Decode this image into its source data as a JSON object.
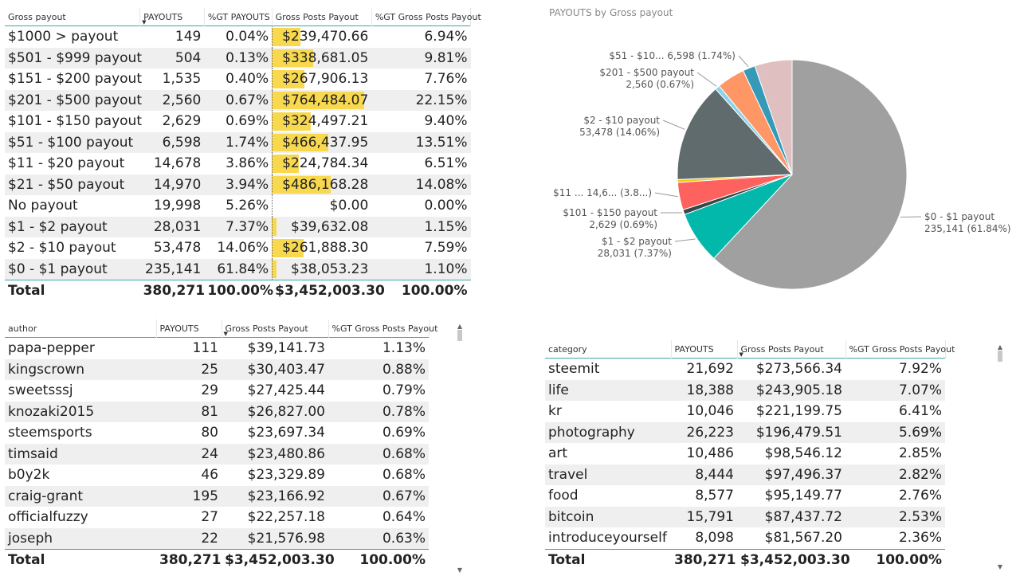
{
  "payout_table": {
    "headers": [
      "Gross payout",
      "PAYOUTS",
      "%GT PAYOUTS",
      "Gross Posts Payout",
      "%GT Gross Posts Payout"
    ],
    "rows": [
      {
        "label": "$1000 > payout",
        "payouts": "149",
        "pct_payouts": "0.04%",
        "gross": "$239,470.66",
        "pct_gross": "6.94%",
        "share": 0.3132
      },
      {
        "label": "$501  - $999 payout",
        "payouts": "504",
        "pct_payouts": "0.13%",
        "gross": "$338,681.05",
        "pct_gross": "9.81%",
        "share": 0.443
      },
      {
        "label": "$151  - $200 payout",
        "payouts": "1,535",
        "pct_payouts": "0.40%",
        "gross": "$267,906.13",
        "pct_gross": "7.76%",
        "share": 0.3504
      },
      {
        "label": "$201  - $500 payout",
        "payouts": "2,560",
        "pct_payouts": "0.67%",
        "gross": "$764,484.07",
        "pct_gross": "22.15%",
        "share": 1.0
      },
      {
        "label": "$101 - $150 payout",
        "payouts": "2,629",
        "pct_payouts": "0.69%",
        "gross": "$324,497.21",
        "pct_gross": "9.40%",
        "share": 0.4245
      },
      {
        "label": "$51 - $100 payout",
        "payouts": "6,598",
        "pct_payouts": "1.74%",
        "gross": "$466,437.95",
        "pct_gross": "13.51%",
        "share": 0.6101
      },
      {
        "label": "$11 - $20 payout",
        "payouts": "14,678",
        "pct_payouts": "3.86%",
        "gross": "$224,784.34",
        "pct_gross": "6.51%",
        "share": 0.294
      },
      {
        "label": "$21 - $50 payout",
        "payouts": "14,970",
        "pct_payouts": "3.94%",
        "gross": "$486,168.28",
        "pct_gross": "14.08%",
        "share": 0.6359
      },
      {
        "label": "No payout",
        "payouts": "19,998",
        "pct_payouts": "5.26%",
        "gross": "$0.00",
        "pct_gross": "0.00%",
        "share": 0.0
      },
      {
        "label": "$1 - $2 payout",
        "payouts": "28,031",
        "pct_payouts": "7.37%",
        "gross": "$39,632.08",
        "pct_gross": "1.15%",
        "share": 0.0518
      },
      {
        "label": "$2 - $10 payout",
        "payouts": "53,478",
        "pct_payouts": "14.06%",
        "gross": "$261,888.30",
        "pct_gross": "7.59%",
        "share": 0.3426
      },
      {
        "label": "$0 - $1 payout",
        "payouts": "235,141",
        "pct_payouts": "61.84%",
        "gross": "$38,053.23",
        "pct_gross": "1.10%",
        "share": 0.0498
      }
    ],
    "total": {
      "label": "Total",
      "payouts": "380,271",
      "pct_payouts": "100.00%",
      "gross": "$3,452,003.30",
      "pct_gross": "100.00%"
    }
  },
  "author_table": {
    "headers": [
      "author",
      "PAYOUTS",
      "Gross Posts Payout",
      "%GT Gross Posts Payout"
    ],
    "rows": [
      {
        "name": "papa-pepper",
        "payouts": "111",
        "gross": "$39,141.73",
        "pct": "1.13%"
      },
      {
        "name": "kingscrown",
        "payouts": "25",
        "gross": "$30,403.47",
        "pct": "0.88%"
      },
      {
        "name": "sweetsssj",
        "payouts": "29",
        "gross": "$27,425.44",
        "pct": "0.79%"
      },
      {
        "name": "knozaki2015",
        "payouts": "81",
        "gross": "$26,827.00",
        "pct": "0.78%"
      },
      {
        "name": "steemsports",
        "payouts": "80",
        "gross": "$23,697.34",
        "pct": "0.69%"
      },
      {
        "name": "timsaid",
        "payouts": "24",
        "gross": "$23,480.86",
        "pct": "0.68%"
      },
      {
        "name": "b0y2k",
        "payouts": "46",
        "gross": "$23,329.89",
        "pct": "0.68%"
      },
      {
        "name": "craig-grant",
        "payouts": "195",
        "gross": "$23,166.92",
        "pct": "0.67%"
      },
      {
        "name": "officialfuzzy",
        "payouts": "27",
        "gross": "$22,257.18",
        "pct": "0.64%"
      },
      {
        "name": "joseph",
        "payouts": "22",
        "gross": "$21,576.98",
        "pct": "0.63%"
      }
    ],
    "total": {
      "name": "Total",
      "payouts": "380,271",
      "gross": "$3,452,003.30",
      "pct": "100.00%"
    }
  },
  "category_table": {
    "headers": [
      "category",
      "PAYOUTS",
      "Gross Posts Payout",
      "%GT Gross Posts Payout"
    ],
    "rows": [
      {
        "name": "steemit",
        "payouts": "21,692",
        "gross": "$273,566.34",
        "pct": "7.92%"
      },
      {
        "name": "life",
        "payouts": "18,388",
        "gross": "$243,905.18",
        "pct": "7.07%"
      },
      {
        "name": "kr",
        "payouts": "10,046",
        "gross": "$221,199.75",
        "pct": "6.41%"
      },
      {
        "name": "photography",
        "payouts": "26,223",
        "gross": "$196,479.51",
        "pct": "5.69%"
      },
      {
        "name": "art",
        "payouts": "10,486",
        "gross": "$98,546.12",
        "pct": "2.85%"
      },
      {
        "name": "travel",
        "payouts": "8,444",
        "gross": "$97,496.37",
        "pct": "2.82%"
      },
      {
        "name": "food",
        "payouts": "8,577",
        "gross": "$95,149.77",
        "pct": "2.76%"
      },
      {
        "name": "bitcoin",
        "payouts": "15,791",
        "gross": "$87,437.72",
        "pct": "2.53%"
      },
      {
        "name": "introduceyourself",
        "payouts": "8,098",
        "gross": "$81,567.20",
        "pct": "2.36%"
      }
    ],
    "total": {
      "name": "Total",
      "payouts": "380,271",
      "gross": "$3,452,003.30",
      "pct": "100.00%"
    }
  },
  "chart_data": {
    "type": "pie",
    "title": "PAYOUTS by Gross payout",
    "slices": [
      {
        "name": "$0 - $1 payout",
        "value": 235141,
        "label_line1": "$0 - $1 payout",
        "label_line2": "235,141 (61.84%)",
        "color": "#a0a0a0"
      },
      {
        "name": "$1 - $2 payout",
        "value": 28031,
        "label_line1": "$1 - $2 payout",
        "label_line2": "28,031 (7.37%)",
        "color": "#01b8aa"
      },
      {
        "name": "$101 - $150 payout",
        "value": 2629,
        "label_line1": "$101 - $150 payout",
        "label_line2": "2,629 (0.69%)",
        "color": "#374649"
      },
      {
        "name": "$11 - $20 payout",
        "value": 14678,
        "label_line1": "$11 ... 14,6... (3.8...)",
        "label_line2": "",
        "color": "#fd625e"
      },
      {
        "name": "$151 - $200 payout",
        "value": 1535,
        "label_line1": "",
        "label_line2": "",
        "color": "#f2c80f"
      },
      {
        "name": "$2 - $10 payout",
        "value": 53478,
        "label_line1": "$2 - $10 payout",
        "label_line2": "53,478 (14.06%)",
        "color": "#5f6b6d"
      },
      {
        "name": "$201 - $500 payout",
        "value": 2560,
        "label_line1": "$201 - $500 payout",
        "label_line2": "2,560 (0.67%)",
        "color": "#8ad4eb"
      },
      {
        "name": "$21 - $50 payout",
        "value": 14970,
        "label_line1": "",
        "label_line2": "",
        "color": "#fe9666"
      },
      {
        "name": "$51 - $100 payout",
        "value": 6598,
        "label_line1": "$51 - $10... 6,598 (1.74%)",
        "label_line2": "",
        "color": "#3599b8"
      },
      {
        "name": "No payout",
        "value": 19998,
        "label_line1": "",
        "label_line2": "",
        "color": "#dfbfbf"
      }
    ]
  }
}
